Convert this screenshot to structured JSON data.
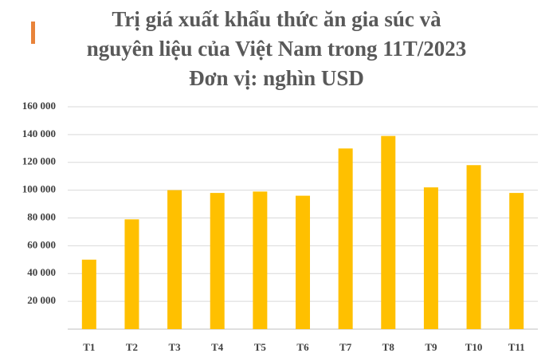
{
  "chart_data": {
    "type": "bar",
    "title": [
      "Trị giá xuất khẩu thức ăn gia súc và",
      "nguyên liệu của Việt Nam trong 11T/2023"
    ],
    "subtitle": "Đơn vị: nghìn USD",
    "categories": [
      "T1",
      "T2",
      "T3",
      "T4",
      "T5",
      "T6",
      "T7",
      "T8",
      "T9",
      "T10",
      "T11"
    ],
    "values": [
      50000,
      79000,
      100000,
      98000,
      99000,
      96000,
      130000,
      139000,
      102000,
      118000,
      98000
    ],
    "color": "#ffc000",
    "ylim": [
      0,
      160000
    ],
    "yticks": [
      {
        "value": 20000,
        "label": "20 000"
      },
      {
        "value": 40000,
        "label": "40 000"
      },
      {
        "value": 60000,
        "label": "60 000"
      },
      {
        "value": 80000,
        "label": "80 000"
      },
      {
        "value": 100000,
        "label": "100 000"
      },
      {
        "value": 120000,
        "label": "120 000"
      },
      {
        "value": 140000,
        "label": "140 000"
      },
      {
        "value": 160000,
        "label": "160 000"
      }
    ],
    "grid": true
  }
}
